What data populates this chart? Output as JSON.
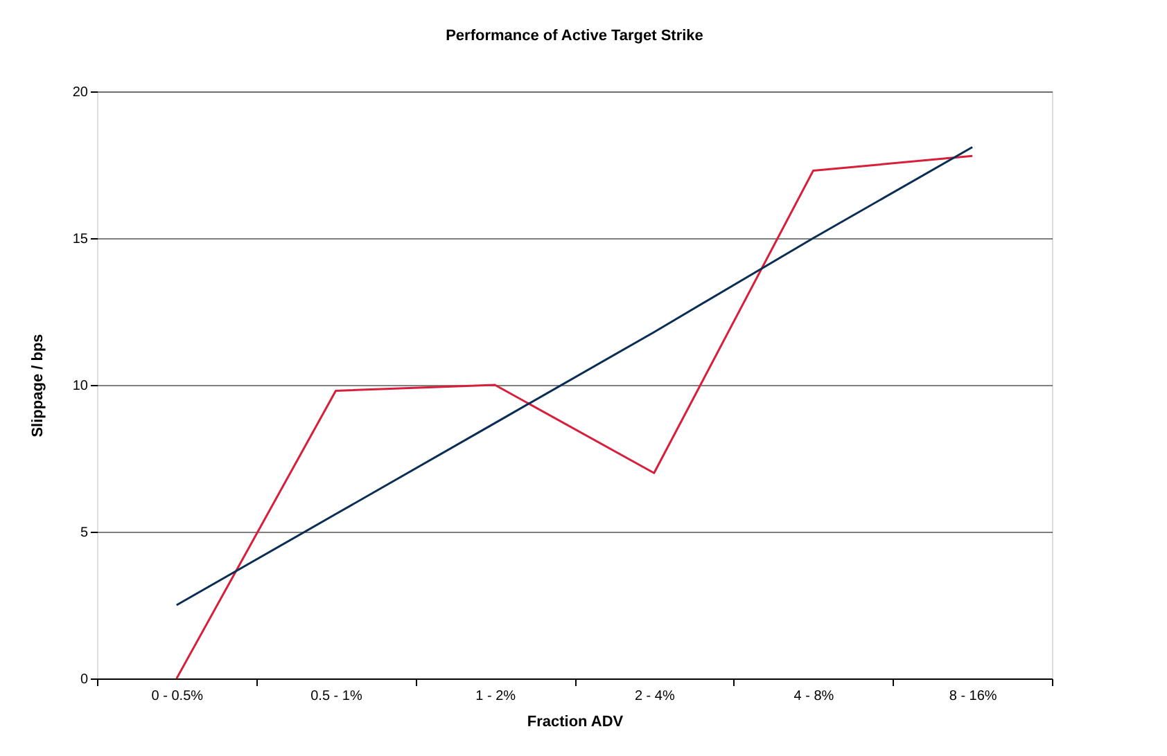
{
  "chart_data": {
    "type": "line",
    "title": "Performance of Active Target Strike",
    "xlabel": "Fraction ADV",
    "ylabel": "Slippage / bps",
    "categories": [
      "0 - 0.5%",
      "0.5 - 1%",
      "1 - 2%",
      "2 - 4%",
      "4 - 8%",
      "8 - 16%"
    ],
    "series": [
      {
        "color": "#d81e3a",
        "values": [
          0,
          9.8,
          10.0,
          7.0,
          17.3,
          17.8
        ]
      },
      {
        "color": "#0a2d55",
        "values": [
          2.5,
          5.6,
          8.7,
          11.8,
          15.0,
          18.1
        ]
      }
    ],
    "ylim": [
      0,
      20
    ],
    "yticks": [
      0,
      5,
      10,
      15,
      20
    ],
    "grid": "y",
    "marker": "none",
    "line_style": "solid"
  }
}
